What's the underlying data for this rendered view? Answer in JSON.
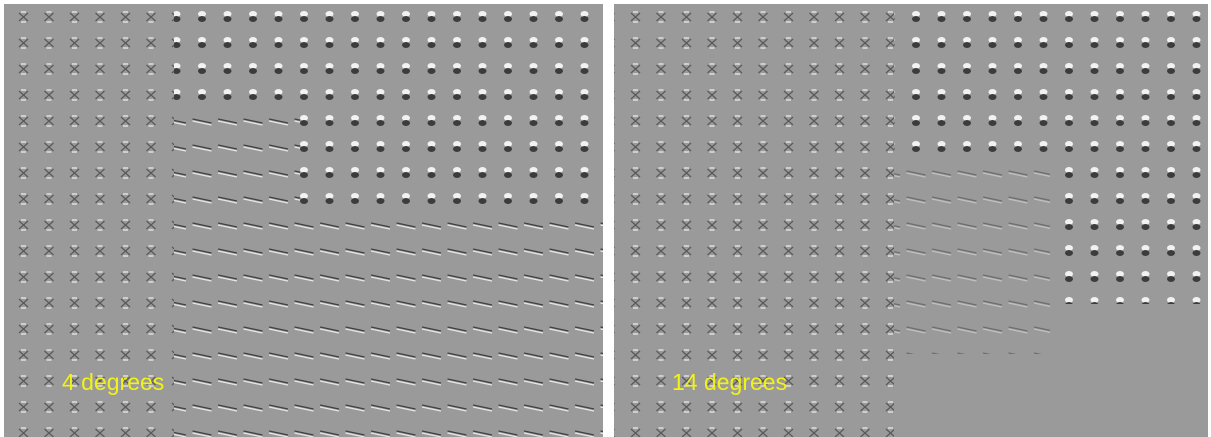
{
  "panels": [
    {
      "label": "4 degrees"
    },
    {
      "label": "14 degrees"
    }
  ]
}
